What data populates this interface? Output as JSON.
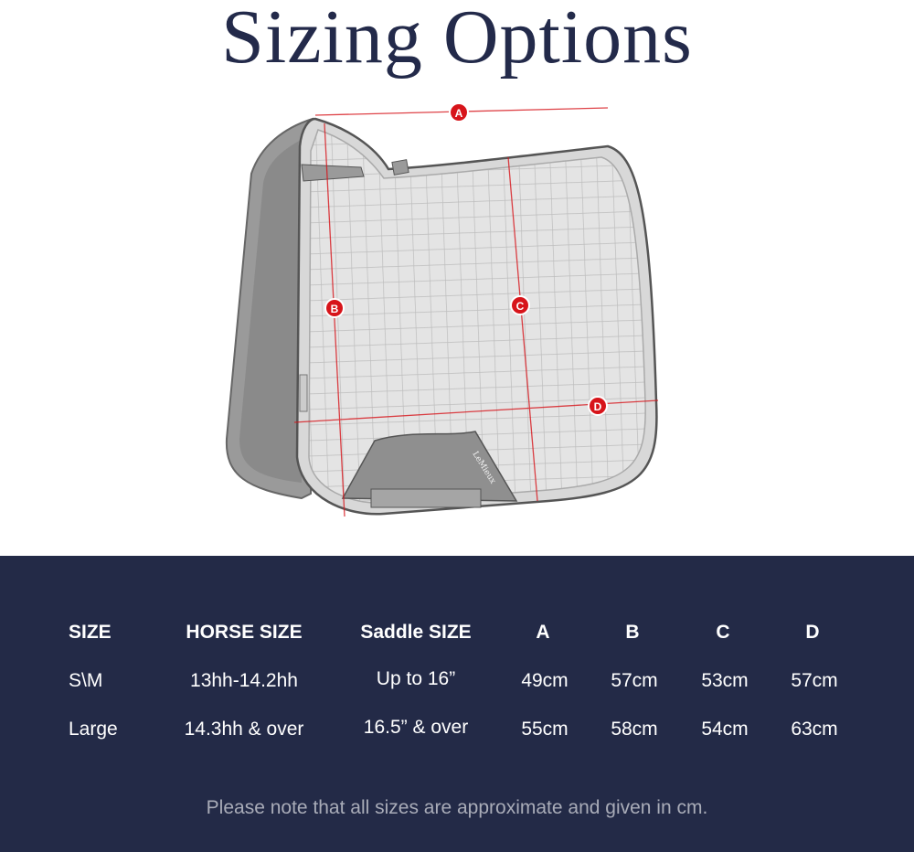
{
  "title": "Sizing Options",
  "diagram": {
    "markers": [
      "A",
      "B",
      "C",
      "D"
    ],
    "marker_color": "#d7141a",
    "brand_label": "LeMieux"
  },
  "table": {
    "headers": [
      "SIZE",
      "HORSE SIZE",
      "Saddle SIZE",
      "A",
      "B",
      "C",
      "D"
    ],
    "rows": [
      [
        "S\\M",
        "13hh-14.2hh",
        "Up to 16”",
        "49cm",
        "57cm",
        "53cm",
        "57cm"
      ],
      [
        "Large",
        "14.3hh & over",
        "16.5” & over",
        "55cm",
        "58cm",
        "54cm",
        "63cm"
      ]
    ],
    "background": "#232a47"
  },
  "note": "Please note that all sizes are approximate and given in cm."
}
